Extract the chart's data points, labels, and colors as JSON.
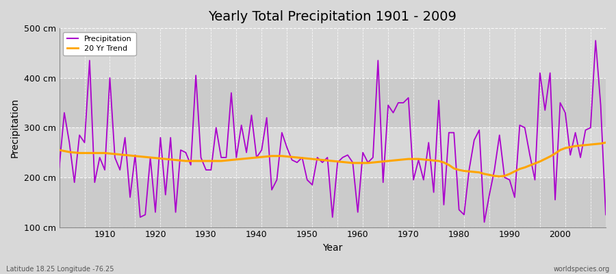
{
  "title": "Yearly Total Precipitation 1901 - 2009",
  "xlabel": "Year",
  "ylabel": "Precipitation",
  "bottom_left_label": "Latitude 18.25 Longitude -76.25",
  "bottom_right_label": "worldspecies.org",
  "precip_color": "#AA00CC",
  "trend_color": "#FFA500",
  "bg_color": "#D8D8D8",
  "plot_bg_bands": [
    "#D0D0D0",
    "#DADADA"
  ],
  "ylim": [
    100,
    500
  ],
  "yticks": [
    100,
    200,
    300,
    400,
    500
  ],
  "ytick_labels": [
    "100 cm",
    "200 cm",
    "300 cm",
    "400 cm",
    "500 cm"
  ],
  "years": [
    1901,
    1902,
    1903,
    1904,
    1905,
    1906,
    1907,
    1908,
    1909,
    1910,
    1911,
    1912,
    1913,
    1914,
    1915,
    1916,
    1917,
    1918,
    1919,
    1920,
    1921,
    1922,
    1923,
    1924,
    1925,
    1926,
    1927,
    1928,
    1929,
    1930,
    1931,
    1932,
    1933,
    1934,
    1935,
    1936,
    1937,
    1938,
    1939,
    1940,
    1941,
    1942,
    1943,
    1944,
    1945,
    1946,
    1947,
    1948,
    1949,
    1950,
    1951,
    1952,
    1953,
    1954,
    1955,
    1956,
    1957,
    1958,
    1959,
    1960,
    1961,
    1962,
    1963,
    1964,
    1965,
    1966,
    1967,
    1968,
    1969,
    1970,
    1971,
    1972,
    1973,
    1974,
    1975,
    1976,
    1977,
    1978,
    1979,
    1980,
    1981,
    1982,
    1983,
    1984,
    1985,
    1986,
    1987,
    1988,
    1989,
    1990,
    1991,
    1992,
    1993,
    1994,
    1995,
    1996,
    1997,
    1998,
    1999,
    2000,
    2001,
    2002,
    2003,
    2004,
    2005,
    2006,
    2007,
    2008,
    2009
  ],
  "precip": [
    220,
    330,
    270,
    190,
    285,
    270,
    435,
    190,
    240,
    215,
    400,
    240,
    215,
    280,
    160,
    245,
    120,
    125,
    240,
    130,
    280,
    165,
    280,
    130,
    255,
    250,
    225,
    405,
    240,
    215,
    215,
    300,
    240,
    240,
    370,
    240,
    305,
    250,
    325,
    240,
    255,
    320,
    175,
    195,
    290,
    260,
    235,
    230,
    240,
    195,
    185,
    240,
    230,
    240,
    120,
    230,
    240,
    245,
    230,
    130,
    250,
    230,
    240,
    435,
    190,
    345,
    330,
    350,
    350,
    360,
    195,
    235,
    195,
    270,
    170,
    355,
    145,
    290,
    290,
    135,
    125,
    215,
    275,
    295,
    110,
    165,
    215,
    285,
    200,
    195,
    160,
    305,
    300,
    245,
    195,
    410,
    335,
    410,
    155,
    350,
    330,
    245,
    290,
    240,
    295,
    300,
    475,
    345,
    125
  ],
  "trend": [
    255,
    253,
    251,
    250,
    249,
    249,
    249,
    249,
    249,
    249,
    248,
    247,
    246,
    245,
    244,
    243,
    242,
    241,
    240,
    239,
    238,
    237,
    236,
    235,
    234,
    233,
    233,
    233,
    233,
    233,
    233,
    233,
    233,
    234,
    235,
    236,
    237,
    238,
    239,
    240,
    241,
    242,
    243,
    243,
    243,
    242,
    241,
    240,
    239,
    238,
    237,
    236,
    235,
    234,
    233,
    232,
    231,
    230,
    229,
    229,
    229,
    229,
    230,
    231,
    232,
    233,
    234,
    235,
    236,
    237,
    237,
    237,
    236,
    235,
    234,
    233,
    230,
    225,
    218,
    215,
    213,
    212,
    211,
    210,
    207,
    205,
    203,
    202,
    203,
    207,
    212,
    217,
    220,
    224,
    228,
    232,
    237,
    242,
    248,
    255,
    259,
    261,
    263,
    264,
    265,
    266,
    267,
    268,
    270
  ]
}
